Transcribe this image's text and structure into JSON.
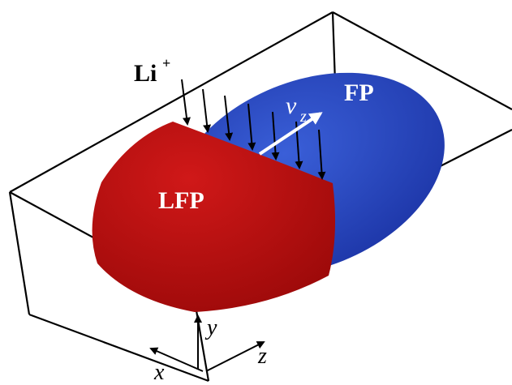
{
  "labels": {
    "li_ion": "Li",
    "li_charge": "+",
    "fp": "FP",
    "lfp": "LFP",
    "velocity": "v",
    "velocity_subscript": "z",
    "axis_x": "x",
    "axis_y": "y",
    "axis_z": "z"
  }
}
